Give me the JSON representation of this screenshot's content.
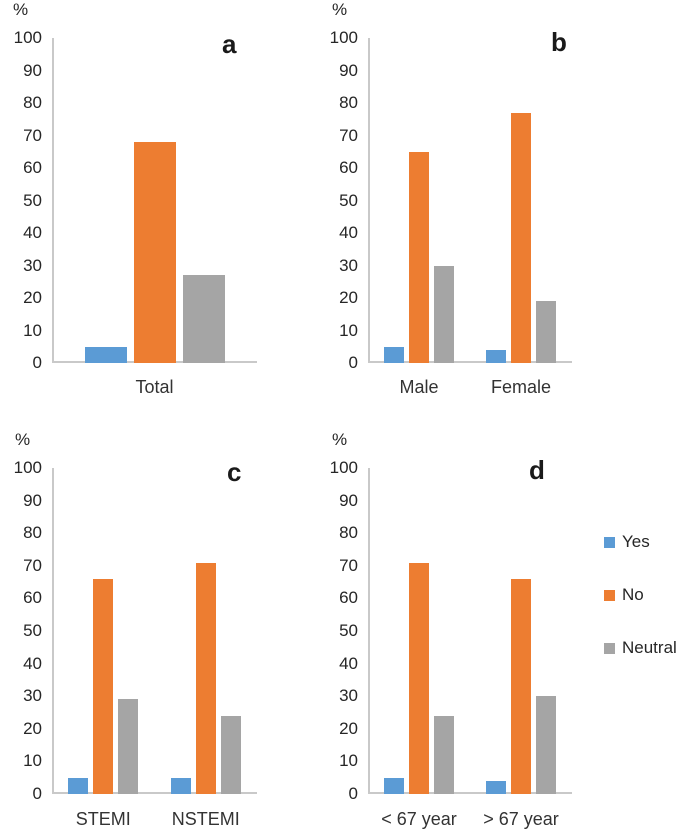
{
  "figure": {
    "background_color": "#ffffff",
    "axis_line_color": "#c9c9c9",
    "text_color": "#262626"
  },
  "chart_data": {
    "type": "bar",
    "ylabel": "%",
    "ylim": [
      0,
      100
    ],
    "ytick_step": 10,
    "ytick_labels": [
      "100",
      "90",
      "80",
      "70",
      "60",
      "50",
      "40",
      "30",
      "20",
      "10",
      "0"
    ],
    "grid": false,
    "series_colors": {
      "Yes": "#5b9bd5",
      "No": "#ed7d31",
      "Neutral": "#a5a5a5"
    },
    "legend": {
      "position": "right-of-panel-d",
      "entries": [
        "Yes",
        "No",
        "Neutral"
      ]
    },
    "panels": [
      {
        "panel_label": "a",
        "categories": [
          "Total"
        ],
        "series": [
          {
            "name": "Yes",
            "values": [
              5
            ]
          },
          {
            "name": "No",
            "values": [
              68
            ]
          },
          {
            "name": "Neutral",
            "values": [
              27
            ]
          }
        ]
      },
      {
        "panel_label": "b",
        "categories": [
          "Male",
          "Female"
        ],
        "series": [
          {
            "name": "Yes",
            "values": [
              5,
              4
            ]
          },
          {
            "name": "No",
            "values": [
              65,
              77
            ]
          },
          {
            "name": "Neutral",
            "values": [
              30,
              19
            ]
          }
        ]
      },
      {
        "panel_label": "c",
        "categories": [
          "STEMI",
          "NSTEMI"
        ],
        "series": [
          {
            "name": "Yes",
            "values": [
              5,
              5
            ]
          },
          {
            "name": "No",
            "values": [
              66,
              71
            ]
          },
          {
            "name": "Neutral",
            "values": [
              29,
              24
            ]
          }
        ]
      },
      {
        "panel_label": "d",
        "categories": [
          "< 67 year",
          "> 67 year"
        ],
        "series": [
          {
            "name": "Yes",
            "values": [
              5,
              4
            ]
          },
          {
            "name": "No",
            "values": [
              71,
              66
            ]
          },
          {
            "name": "Neutral",
            "values": [
              24,
              30
            ]
          }
        ]
      }
    ]
  }
}
